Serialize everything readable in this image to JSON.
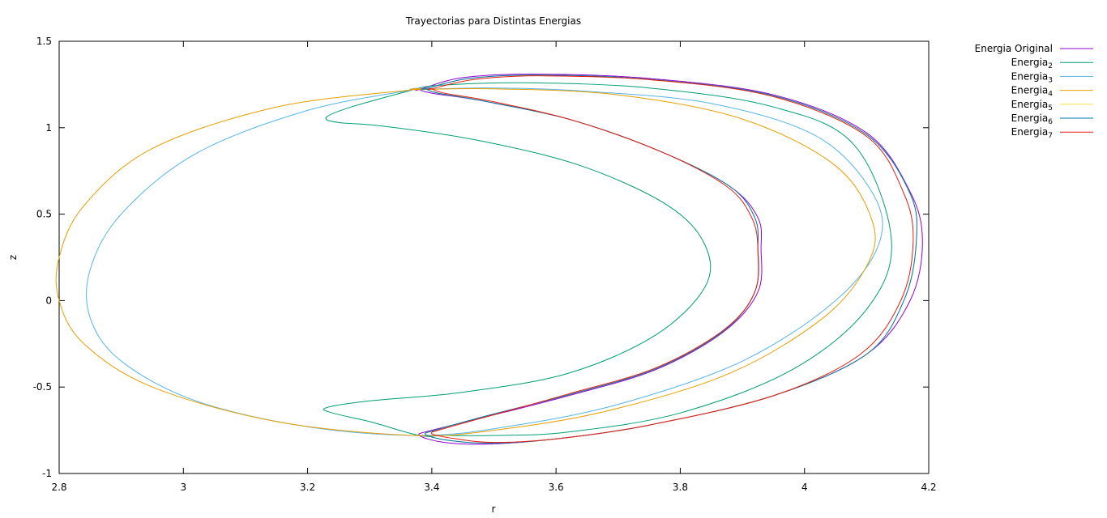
{
  "chart_data": {
    "type": "line",
    "title": "Trayectorias para Distintas Energias",
    "xlabel": "r",
    "ylabel": "z",
    "xlim": [
      2.8,
      4.2
    ],
    "ylim": [
      -1,
      1.5
    ],
    "xticks": [
      "2.8",
      "3",
      "3.2",
      "3.4",
      "3.6",
      "3.8",
      "4",
      "4.2"
    ],
    "yticks": [
      "1.5",
      "1",
      "0.5",
      "0",
      "-0.5",
      "-1"
    ],
    "grid": false,
    "legend_position": "top-right, outside plot",
    "series": [
      {
        "name": "Energia Original",
        "name_base": "Energia Original",
        "name_sub": "",
        "color": "#9400d3",
        "x": [
          3.38,
          3.45,
          3.57,
          3.75,
          3.95,
          4.1,
          4.17,
          4.19,
          4.17,
          4.1,
          3.95,
          3.75,
          3.6,
          3.49,
          3.42,
          3.38,
          3.4,
          3.49,
          3.62,
          3.76,
          3.87,
          3.925,
          3.93,
          3.925,
          3.88,
          3.77,
          3.63,
          3.49,
          3.4,
          3.38
        ],
        "y": [
          1.22,
          1.29,
          1.31,
          1.285,
          1.19,
          0.97,
          0.63,
          0.34,
          0.0,
          -0.31,
          -0.55,
          -0.72,
          -0.8,
          -0.83,
          -0.82,
          -0.78,
          -0.75,
          -0.67,
          -0.55,
          -0.4,
          -0.18,
          0.05,
          0.3,
          0.48,
          0.66,
          0.86,
          1.04,
          1.15,
          1.2,
          1.22
        ]
      },
      {
        "name": "Energia2",
        "name_base": "Energia",
        "name_sub": "2",
        "color": "#009e73",
        "x": [
          3.37,
          3.41,
          3.55,
          3.75,
          3.95,
          4.08,
          4.14,
          4.1,
          3.98,
          3.8,
          3.62,
          3.5,
          3.42,
          3.38,
          3.3,
          3.24,
          3.23,
          3.3,
          3.45,
          3.62,
          3.76,
          3.84,
          3.84,
          3.78,
          3.64,
          3.47,
          3.32,
          3.25,
          3.23,
          3.27,
          3.37
        ],
        "y": [
          1.22,
          1.245,
          1.26,
          1.23,
          1.12,
          0.9,
          0.35,
          -0.05,
          -0.4,
          -0.65,
          -0.76,
          -0.78,
          -0.78,
          -0.78,
          -0.7,
          -0.65,
          -0.62,
          -0.58,
          -0.53,
          -0.42,
          -0.2,
          0.08,
          0.32,
          0.55,
          0.78,
          0.93,
          1.01,
          1.03,
          1.06,
          1.12,
          1.22
        ]
      },
      {
        "name": "Energia3",
        "name_base": "Energia",
        "name_sub": "3",
        "color": "#56b4e9",
        "x": [
          3.37,
          3.5,
          3.65,
          3.85,
          4.02,
          4.11,
          4.12,
          4.05,
          3.9,
          3.7,
          3.52,
          3.38,
          3.2,
          3.02,
          2.9,
          2.85,
          2.85,
          2.9,
          3.02,
          3.2,
          3.37
        ],
        "y": [
          1.22,
          1.23,
          1.21,
          1.14,
          0.95,
          0.62,
          0.33,
          0.0,
          -0.35,
          -0.6,
          -0.73,
          -0.78,
          -0.73,
          -0.58,
          -0.35,
          -0.1,
          0.18,
          0.5,
          0.85,
          1.1,
          1.22
        ]
      },
      {
        "name": "Energia4",
        "name_base": "Energia",
        "name_sub": "4",
        "color": "#e69f00",
        "x": [
          3.37,
          3.5,
          3.7,
          3.9,
          4.05,
          4.11,
          4.1,
          4.03,
          3.88,
          3.68,
          3.5,
          3.37,
          3.15,
          2.95,
          2.84,
          2.8,
          2.8,
          2.84,
          2.95,
          3.15,
          3.37
        ],
        "y": [
          1.22,
          1.225,
          1.19,
          1.05,
          0.78,
          0.45,
          0.2,
          -0.1,
          -0.42,
          -0.64,
          -0.75,
          -0.78,
          -0.7,
          -0.5,
          -0.25,
          0.0,
          0.25,
          0.55,
          0.88,
          1.12,
          1.22
        ]
      },
      {
        "name": "Energia5",
        "name_base": "Energia",
        "name_sub": "5",
        "color": "#f0e442",
        "x": [
          3.39,
          3.46,
          3.57,
          3.75,
          3.95,
          4.1,
          4.17,
          4.18,
          4.16,
          4.1,
          3.95,
          3.75,
          3.6,
          3.5,
          3.43,
          3.39,
          3.41,
          3.49,
          3.62,
          3.76,
          3.87,
          3.92,
          3.925,
          3.92,
          3.88,
          3.77,
          3.63,
          3.49,
          3.41,
          3.39
        ],
        "y": [
          1.225,
          1.285,
          1.305,
          1.28,
          1.185,
          0.96,
          0.62,
          0.34,
          0.0,
          -0.31,
          -0.55,
          -0.72,
          -0.8,
          -0.825,
          -0.81,
          -0.775,
          -0.745,
          -0.665,
          -0.545,
          -0.395,
          -0.175,
          0.05,
          0.3,
          0.48,
          0.66,
          0.86,
          1.04,
          1.15,
          1.2,
          1.225
        ]
      },
      {
        "name": "Energia6",
        "name_base": "Energia",
        "name_sub": "6",
        "color": "#0072b2",
        "x": [
          3.39,
          3.46,
          3.57,
          3.75,
          3.95,
          4.1,
          4.17,
          4.18,
          4.16,
          4.1,
          3.95,
          3.75,
          3.6,
          3.5,
          3.43,
          3.39,
          3.41,
          3.49,
          3.62,
          3.76,
          3.87,
          3.92,
          3.925,
          3.92,
          3.88,
          3.77,
          3.63,
          3.49,
          3.41,
          3.39
        ],
        "y": [
          1.225,
          1.285,
          1.305,
          1.28,
          1.185,
          0.96,
          0.62,
          0.34,
          0.0,
          -0.31,
          -0.55,
          -0.72,
          -0.8,
          -0.825,
          -0.81,
          -0.775,
          -0.745,
          -0.665,
          -0.545,
          -0.395,
          -0.175,
          0.05,
          0.3,
          0.48,
          0.66,
          0.86,
          1.04,
          1.15,
          1.2,
          1.225
        ]
      },
      {
        "name": "Energia7",
        "name_base": "Energia",
        "name_sub": "7",
        "color": "#e51e10",
        "x": [
          3.4,
          3.47,
          3.58,
          3.76,
          3.95,
          4.1,
          4.16,
          4.175,
          4.155,
          4.09,
          3.95,
          3.75,
          3.6,
          3.5,
          3.44,
          3.4,
          3.42,
          3.5,
          3.62,
          3.76,
          3.87,
          3.92,
          3.925,
          3.915,
          3.875,
          3.77,
          3.63,
          3.5,
          3.42,
          3.4
        ],
        "y": [
          1.225,
          1.28,
          1.3,
          1.275,
          1.18,
          0.95,
          0.62,
          0.34,
          0.0,
          -0.31,
          -0.55,
          -0.72,
          -0.8,
          -0.82,
          -0.8,
          -0.77,
          -0.74,
          -0.66,
          -0.54,
          -0.39,
          -0.17,
          0.05,
          0.3,
          0.48,
          0.66,
          0.86,
          1.04,
          1.15,
          1.2,
          1.225
        ]
      }
    ]
  }
}
